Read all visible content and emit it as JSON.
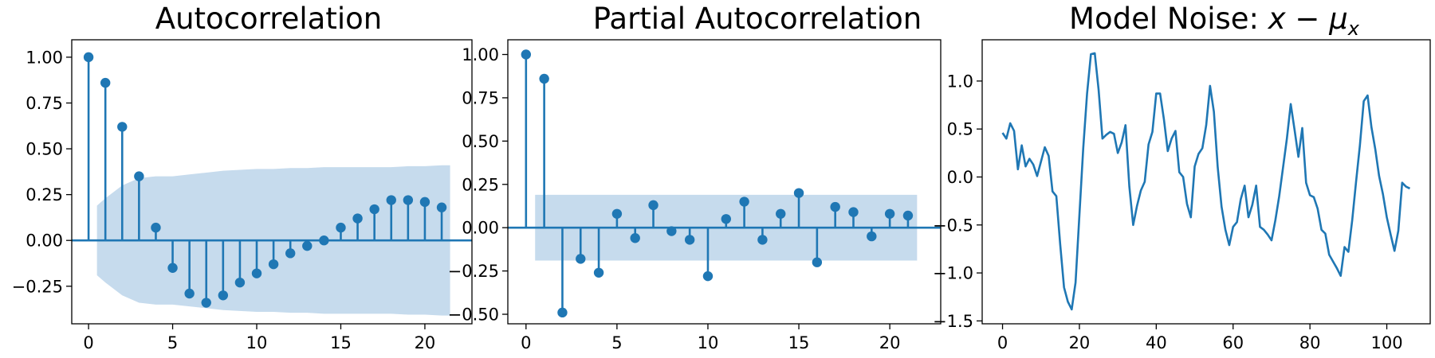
{
  "figure": {
    "background": "#ffffff",
    "accent": "#1f77b4",
    "band_color": "#c6dbed"
  },
  "chart_data": [
    {
      "type": "stem",
      "title": "Autocorrelation",
      "xlim": [
        -1.0,
        22.8
      ],
      "ylim": [
        -0.455,
        1.095
      ],
      "xticks": [
        0,
        5,
        10,
        15,
        20
      ],
      "xtick_labels": [
        "0",
        "5",
        "10",
        "15",
        "20"
      ],
      "yticks": [
        1.0,
        0.75,
        0.5,
        0.25,
        0.0,
        -0.25
      ],
      "ytick_labels": [
        "1.00",
        "0.75",
        "0.50",
        "0.25",
        "0.00",
        "−0.25"
      ],
      "lags": [
        0,
        1,
        2,
        3,
        4,
        5,
        6,
        7,
        8,
        9,
        10,
        11,
        12,
        13,
        14,
        15,
        16,
        17,
        18,
        19,
        20,
        21
      ],
      "values": [
        1.0,
        0.86,
        0.62,
        0.35,
        0.07,
        -0.15,
        -0.29,
        -0.34,
        -0.3,
        -0.23,
        -0.18,
        -0.13,
        -0.07,
        -0.03,
        0.0,
        0.07,
        0.12,
        0.17,
        0.22,
        0.22,
        0.21,
        0.18
      ],
      "confidence_band": {
        "x": [
          0.5,
          1,
          2,
          3,
          4,
          5,
          6,
          7,
          8,
          9,
          10,
          11,
          12,
          13,
          14,
          15,
          16,
          17,
          18,
          19,
          20,
          21,
          21.5
        ],
        "upper": [
          0.19,
          0.23,
          0.3,
          0.34,
          0.35,
          0.35,
          0.36,
          0.37,
          0.38,
          0.385,
          0.39,
          0.39,
          0.395,
          0.395,
          0.4,
          0.4,
          0.4,
          0.4,
          0.4,
          0.405,
          0.405,
          0.41,
          0.41
        ]
      },
      "zero_line": true,
      "grid": false,
      "legend": null
    },
    {
      "type": "stem",
      "title": "Partial Autocorrelation",
      "xlim": [
        -1.0,
        22.8
      ],
      "ylim": [
        -0.555,
        1.085
      ],
      "xticks": [
        0,
        5,
        10,
        15,
        20
      ],
      "xtick_labels": [
        "0",
        "5",
        "10",
        "15",
        "20"
      ],
      "yticks": [
        1.0,
        0.75,
        0.5,
        0.25,
        0.0,
        -0.25,
        -0.5
      ],
      "ytick_labels": [
        "1.00",
        "0.75",
        "0.50",
        "0.25",
        "0.00",
        "−0.25",
        "−0.50"
      ],
      "lags": [
        0,
        1,
        2,
        3,
        4,
        5,
        6,
        7,
        8,
        9,
        10,
        11,
        12,
        13,
        14,
        15,
        16,
        17,
        18,
        19,
        20,
        21
      ],
      "values": [
        1.0,
        0.86,
        -0.49,
        -0.18,
        -0.26,
        0.08,
        -0.06,
        0.13,
        -0.02,
        -0.07,
        -0.28,
        0.05,
        0.15,
        -0.07,
        0.08,
        0.2,
        -0.2,
        0.12,
        0.09,
        -0.05,
        0.08,
        0.07
      ],
      "confidence_band": {
        "x": [
          0.5,
          21.5
        ],
        "upper": [
          0.19,
          0.19
        ]
      },
      "zero_line": true,
      "grid": false,
      "legend": null
    },
    {
      "type": "line",
      "title": "Model Noise: x − μ",
      "title_main": "Model Noise: ",
      "title_math_x": "x",
      "title_math_minus": " − ",
      "title_math_mu": "μ",
      "title_math_sub": "x",
      "xlim": [
        -5.3,
        111.3
      ],
      "ylim": [
        -1.53,
        1.43
      ],
      "xticks": [
        0,
        20,
        40,
        60,
        80,
        100
      ],
      "xtick_labels": [
        "0",
        "20",
        "40",
        "60",
        "80",
        "100"
      ],
      "yticks": [
        1.0,
        0.5,
        0.0,
        -0.5,
        -1.0,
        -1.5
      ],
      "ytick_labels": [
        "1.0",
        "0.5",
        "0.0",
        "−0.5",
        "−1.0",
        "−1.5"
      ],
      "series": [
        {
          "x": [
            0,
            1,
            2,
            3,
            4,
            5,
            6,
            7,
            8,
            9,
            10,
            11,
            12,
            13,
            14,
            15,
            16,
            17,
            18,
            19,
            20,
            21,
            22,
            23,
            24,
            25,
            26,
            27,
            28,
            29,
            30,
            31,
            32,
            33,
            34,
            35,
            36,
            37,
            38,
            39,
            40,
            41,
            42,
            43,
            44,
            45,
            46,
            47,
            48,
            49,
            50,
            51,
            52,
            53,
            54,
            55,
            56,
            57,
            58,
            59,
            60,
            61,
            62,
            63,
            64,
            65,
            66,
            67,
            68,
            69,
            70,
            71,
            72,
            73,
            74,
            75,
            76,
            77,
            78,
            79,
            80,
            81,
            82,
            83,
            84,
            85,
            86,
            87,
            88,
            89,
            90,
            91,
            92,
            93,
            94,
            95,
            96,
            97,
            98,
            99,
            100,
            101,
            102,
            103,
            104,
            105,
            106
          ],
          "values": [
            0.46,
            0.4,
            0.56,
            0.48,
            0.08,
            0.33,
            0.11,
            0.19,
            0.13,
            0.01,
            0.16,
            0.31,
            0.22,
            -0.15,
            -0.2,
            -0.7,
            -1.15,
            -1.3,
            -1.38,
            -1.1,
            -0.4,
            0.3,
            0.87,
            1.28,
            1.29,
            0.91,
            0.4,
            0.44,
            0.47,
            0.45,
            0.25,
            0.36,
            0.54,
            -0.1,
            -0.5,
            -0.3,
            -0.14,
            -0.05,
            0.34,
            0.47,
            0.87,
            0.87,
            0.6,
            0.27,
            0.4,
            0.48,
            0.05,
            0.0,
            -0.28,
            -0.42,
            0.11,
            0.24,
            0.3,
            0.54,
            0.95,
            0.68,
            0.1,
            -0.31,
            -0.55,
            -0.71,
            -0.52,
            -0.47,
            -0.23,
            -0.09,
            -0.42,
            -0.29,
            -0.09,
            -0.52,
            -0.55,
            -0.6,
            -0.66,
            -0.45,
            -0.2,
            0.1,
            0.4,
            0.76,
            0.49,
            0.21,
            0.51,
            -0.06,
            -0.19,
            -0.21,
            -0.33,
            -0.55,
            -0.59,
            -0.81,
            -0.88,
            -0.95,
            -1.03,
            -0.73,
            -0.78,
            -0.45,
            -0.05,
            0.33,
            0.79,
            0.85,
            0.52,
            0.29,
            0.01,
            -0.18,
            -0.42,
            -0.6,
            -0.77,
            -0.56,
            -0.06,
            -0.1,
            -0.12
          ]
        }
      ],
      "grid": false,
      "legend": null
    }
  ]
}
